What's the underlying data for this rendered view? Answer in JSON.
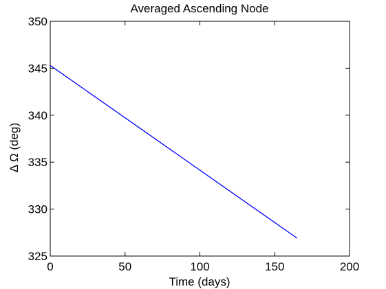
{
  "chart_data": {
    "type": "line",
    "title": "Averaged Ascending Node",
    "xlabel": "Time (days)",
    "ylabel": "Δ Ω (deg)",
    "xlim": [
      0,
      200
    ],
    "ylim": [
      325,
      350
    ],
    "xticks": [
      0,
      50,
      100,
      150,
      200
    ],
    "yticks": [
      325,
      330,
      335,
      340,
      345,
      350
    ],
    "xtick_labels": [
      "0",
      "50",
      "100",
      "150",
      "200"
    ],
    "ytick_labels": [
      "325",
      "330",
      "335",
      "340",
      "345",
      "350"
    ],
    "grid": false,
    "series": [
      {
        "name": "Averaged Ascending Node",
        "color": "#0000ff",
        "x": [
          0,
          165
        ],
        "y": [
          345.3,
          326.9
        ]
      }
    ]
  }
}
